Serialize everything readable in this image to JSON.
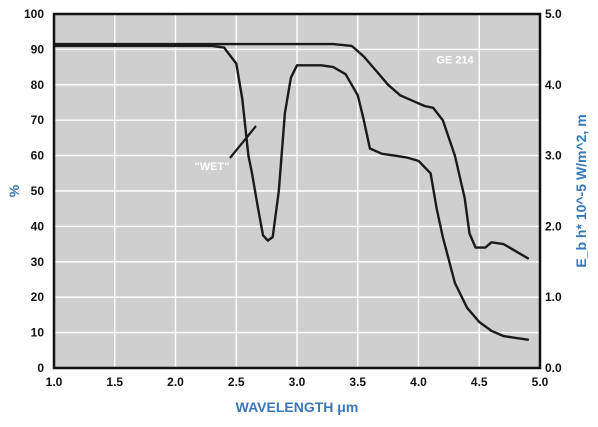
{
  "chart_data": {
    "type": "line",
    "xlabel": "WAVELENGTH μm",
    "ylabel": "%",
    "y2label": "E_b h* 10^-5 W/m^2, m",
    "xlim": [
      1.0,
      5.0
    ],
    "ylim": [
      0,
      100
    ],
    "y2lim": [
      0.0,
      5.0
    ],
    "grid": true,
    "xticks": [
      "1.0",
      "1.5",
      "2.0",
      "2.5",
      "3.0",
      "3.5",
      "4.0",
      "4.5",
      "5.0"
    ],
    "yticks": [
      "0",
      "10",
      "20",
      "30",
      "40",
      "50",
      "60",
      "70",
      "80",
      "90",
      "100"
    ],
    "y2ticks": [
      "0.0",
      "1.0",
      "2.0",
      "3.0",
      "4.0",
      "5.0"
    ],
    "annotations": [
      {
        "text": "GE 214",
        "x": 4.3,
        "y": 86
      },
      {
        "text": "\"WET\"",
        "x": 2.3,
        "y": 56
      }
    ],
    "series": [
      {
        "name": "GE 214",
        "x": [
          1.0,
          1.5,
          2.0,
          2.5,
          3.0,
          3.3,
          3.45,
          3.55,
          3.65,
          3.75,
          3.85,
          3.95,
          4.05,
          4.12,
          4.2,
          4.3,
          4.38,
          4.42,
          4.47,
          4.55,
          4.6,
          4.7,
          4.8,
          4.9
        ],
        "values": [
          91.5,
          91.5,
          91.5,
          91.5,
          91.5,
          91.5,
          91.0,
          88.0,
          84.0,
          80.0,
          77.0,
          75.5,
          74.0,
          73.5,
          70.0,
          60.0,
          48.0,
          38.0,
          34.0,
          34.0,
          35.5,
          35.0,
          33.0,
          31.0
        ]
      },
      {
        "name": "\"WET\"",
        "x": [
          1.0,
          1.5,
          2.0,
          2.3,
          2.4,
          2.5,
          2.55,
          2.6,
          2.63,
          2.68,
          2.72,
          2.76,
          2.8,
          2.85,
          2.9,
          2.95,
          3.0,
          3.1,
          3.2,
          3.3,
          3.4,
          3.5,
          3.55,
          3.6,
          3.7,
          3.8,
          3.9,
          4.0,
          4.1,
          4.15,
          4.2,
          4.3,
          4.4,
          4.5,
          4.6,
          4.7,
          4.8,
          4.9
        ],
        "values": [
          91.0,
          91.0,
          91.0,
          91.0,
          90.5,
          86.0,
          76.0,
          60.0,
          55.0,
          45.0,
          37.5,
          36.0,
          37.0,
          50.0,
          72.0,
          82.0,
          85.5,
          85.5,
          85.5,
          85.0,
          83.0,
          77.0,
          70.0,
          62.0,
          60.5,
          60.0,
          59.5,
          58.5,
          55.0,
          45.0,
          37.0,
          24.0,
          17.0,
          13.0,
          10.5,
          9.0,
          8.5,
          8.0
        ]
      }
    ]
  }
}
